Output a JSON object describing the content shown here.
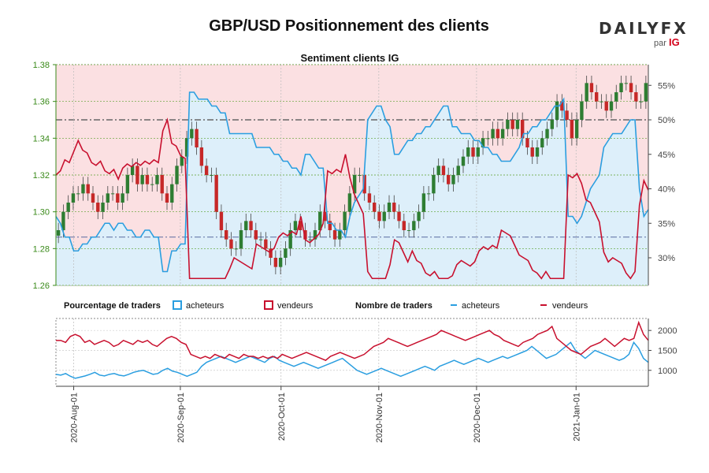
{
  "title": "GBP/USD Positionnement des clients",
  "logo": {
    "brand": "DAILYFX",
    "by": "par",
    "sponsor": "IG"
  },
  "chart_data": [
    {
      "type": "line",
      "title": "Sentiment clients IG",
      "left_axis": {
        "ticks": [
          1.26,
          1.28,
          1.3,
          1.32,
          1.34,
          1.36,
          1.38
        ],
        "range": [
          1.26,
          1.38
        ],
        "color": "#3a8a1a"
      },
      "right_axis": {
        "ticks": [
          "30%",
          "35%",
          "40%",
          "45%",
          "50%",
          "55%"
        ],
        "values": [
          30,
          35,
          40,
          45,
          50,
          55
        ],
        "range": [
          26,
          58
        ]
      },
      "reference_lines": {
        "fifty_percent": 50,
        "lower_dashdot": 33
      },
      "price_candles_close_approx": [
        1.29,
        1.3,
        1.305,
        1.31,
        1.31,
        1.315,
        1.31,
        1.305,
        1.3,
        1.305,
        1.31,
        1.31,
        1.305,
        1.31,
        1.32,
        1.325,
        1.315,
        1.32,
        1.315,
        1.315,
        1.32,
        1.31,
        1.305,
        1.315,
        1.325,
        1.33,
        1.34,
        1.345,
        1.335,
        1.325,
        1.32,
        1.32,
        1.3,
        1.29,
        1.285,
        1.28,
        1.28,
        1.29,
        1.295,
        1.29,
        1.285,
        1.285,
        1.28,
        1.275,
        1.27,
        1.275,
        1.28,
        1.29,
        1.295,
        1.29,
        1.285,
        1.285,
        1.29,
        1.3,
        1.295,
        1.29,
        1.285,
        1.29,
        1.3,
        1.31,
        1.32,
        1.32,
        1.31,
        1.305,
        1.3,
        1.295,
        1.3,
        1.305,
        1.3,
        1.295,
        1.29,
        1.29,
        1.295,
        1.3,
        1.31,
        1.31,
        1.32,
        1.325,
        1.32,
        1.315,
        1.32,
        1.325,
        1.33,
        1.335,
        1.33,
        1.335,
        1.34,
        1.34,
        1.345,
        1.34,
        1.345,
        1.35,
        1.345,
        1.35,
        1.34,
        1.335,
        1.33,
        1.335,
        1.34,
        1.345,
        1.35,
        1.36,
        1.355,
        1.35,
        1.34,
        1.35,
        1.36,
        1.37,
        1.365,
        1.36,
        1.36,
        1.355,
        1.36,
        1.365,
        1.37,
        1.37,
        1.365,
        1.36,
        1.36,
        1.37
      ],
      "client_sentiment_percent_approx": [
        36,
        35,
        33,
        33,
        31,
        31,
        32,
        32,
        33,
        33,
        34,
        35,
        35,
        34,
        35,
        35,
        34,
        34,
        33,
        33,
        34,
        34,
        33,
        33,
        28,
        28,
        31,
        31,
        32,
        32,
        54,
        54,
        53,
        53,
        53,
        52,
        52,
        51,
        51,
        48,
        48,
        48,
        48,
        48,
        48,
        46,
        46,
        46,
        46,
        45,
        45,
        44,
        44,
        43,
        43,
        42,
        45,
        45,
        44,
        43,
        43,
        35,
        35,
        34,
        34,
        33,
        36,
        38,
        39,
        40,
        50,
        51,
        52,
        52,
        50,
        49,
        45,
        45,
        46,
        47,
        47,
        48,
        48,
        49,
        49,
        50,
        51,
        52,
        52,
        49,
        49,
        48,
        48,
        48,
        47,
        47,
        46,
        46,
        45,
        45,
        44,
        44,
        44,
        45,
        46,
        48,
        48,
        49,
        49,
        50,
        50,
        51,
        52,
        52,
        53,
        36,
        36,
        35,
        36,
        38,
        40,
        41,
        42,
        46,
        47,
        48,
        48,
        48,
        49,
        50,
        50,
        40,
        36,
        37
      ],
      "series": [
        {
          "name": "acheteurs",
          "color": "#2a9ee0",
          "fill": "#ddeffa"
        },
        {
          "name": "vendeurs",
          "color": "#c8102e",
          "fill": "#fbe0e2"
        }
      ]
    },
    {
      "type": "line",
      "legend_groups": [
        {
          "label": "Pourcentage de traders",
          "items": [
            {
              "name": "acheteurs",
              "color": "#2a9ee0",
              "marker": "square"
            },
            {
              "name": "vendeurs",
              "color": "#c8102e",
              "marker": "square"
            }
          ]
        },
        {
          "label": "Nombre de traders",
          "items": [
            {
              "name": "acheteurs",
              "color": "#2a9ee0",
              "marker": "line"
            },
            {
              "name": "vendeurs",
              "color": "#c8102e",
              "marker": "line"
            }
          ]
        }
      ],
      "y_ticks": [
        1000,
        1500,
        2000
      ],
      "y_range": [
        600,
        2300
      ],
      "x_ticks": [
        "2020-Aug-01",
        "2020-Sep-01",
        "2020-Oct-01",
        "2020-Nov-01",
        "2020-Dec-01",
        "2021-Jan-01"
      ],
      "series": [
        {
          "name": "acheteurs",
          "color": "#2a9ee0",
          "values": [
            900,
            880,
            920,
            850,
            800,
            830,
            860,
            900,
            950,
            880,
            860,
            900,
            920,
            880,
            860,
            900,
            950,
            980,
            1000,
            950,
            900,
            920,
            1000,
            1050,
            980,
            950,
            900,
            850,
            900,
            950,
            1100,
            1200,
            1250,
            1300,
            1350,
            1300,
            1250,
            1200,
            1250,
            1300,
            1350,
            1300,
            1250,
            1200,
            1300,
            1350,
            1250,
            1200,
            1150,
            1100,
            1150,
            1200,
            1150,
            1100,
            1050,
            1100,
            1150,
            1200,
            1250,
            1300,
            1200,
            1100,
            1000,
            950,
            900,
            950,
            1000,
            1050,
            1000,
            950,
            900,
            850,
            900,
            950,
            1000,
            1050,
            1100,
            1050,
            1000,
            1100,
            1150,
            1200,
            1250,
            1200,
            1150,
            1200,
            1250,
            1300,
            1250,
            1200,
            1250,
            1300,
            1350,
            1300,
            1350,
            1400,
            1450,
            1500,
            1600,
            1500,
            1400,
            1300,
            1350,
            1400,
            1500,
            1600,
            1700,
            1500,
            1400,
            1300,
            1400,
            1500,
            1450,
            1400,
            1350,
            1300,
            1250,
            1300,
            1400,
            1700,
            1550,
            1300,
            1200
          ]
        },
        {
          "name": "vendeurs",
          "color": "#c8102e",
          "values": [
            1750,
            1750,
            1700,
            1850,
            1900,
            1850,
            1700,
            1750,
            1650,
            1700,
            1750,
            1700,
            1600,
            1650,
            1750,
            1700,
            1650,
            1750,
            1700,
            1750,
            1650,
            1600,
            1700,
            1800,
            1850,
            1800,
            1700,
            1650,
            1400,
            1350,
            1300,
            1350,
            1300,
            1400,
            1350,
            1300,
            1400,
            1350,
            1300,
            1400,
            1350,
            1350,
            1300,
            1350,
            1300,
            1350,
            1300,
            1400,
            1350,
            1300,
            1350,
            1400,
            1450,
            1400,
            1350,
            1300,
            1250,
            1350,
            1400,
            1450,
            1400,
            1350,
            1300,
            1350,
            1400,
            1500,
            1600,
            1650,
            1700,
            1800,
            1750,
            1700,
            1650,
            1600,
            1650,
            1700,
            1750,
            1800,
            1850,
            1900,
            2000,
            1950,
            1900,
            1850,
            1800,
            1750,
            1800,
            1850,
            1900,
            1950,
            2000,
            1900,
            1850,
            1750,
            1700,
            1650,
            1600,
            1700,
            1750,
            1800,
            1900,
            1950,
            2000,
            2100,
            1800,
            1700,
            1600,
            1500,
            1450,
            1400,
            1500,
            1600,
            1650,
            1700,
            1800,
            1700,
            1600,
            1700,
            1800,
            1750,
            1800,
            2200,
            1900,
            1750
          ]
        }
      ]
    }
  ]
}
